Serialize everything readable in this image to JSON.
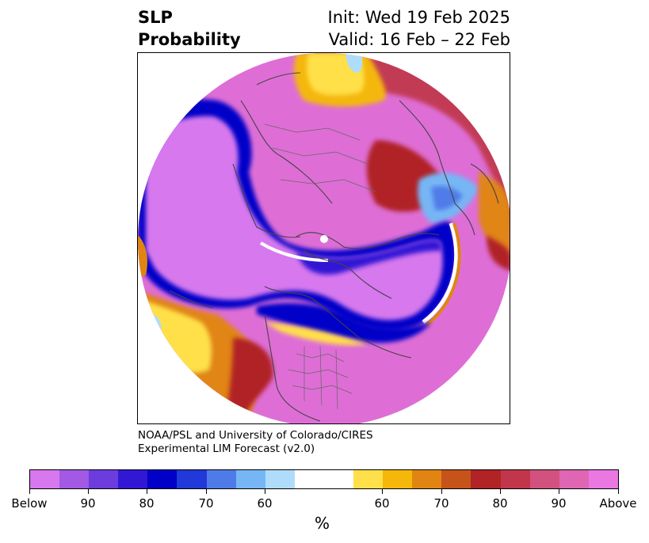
{
  "header": {
    "title_line1": "SLP",
    "title_line2": "Probability",
    "init_text": "Init: Wed 19 Feb 2025",
    "valid_text": "Valid: 16 Feb – 22 Feb"
  },
  "credit": {
    "line1": "NOAA/PSL and University of Colorado/CIRES",
    "line2": "Experimental LIM Forecast (v2.0)"
  },
  "colorbar": {
    "colors": [
      "#d778ee",
      "#a25ae4",
      "#6d3cdc",
      "#3218d5",
      "#0000c8",
      "#2139d8",
      "#4f7be8",
      "#76b6f5",
      "#b0dcfb",
      "#ffffff",
      "#ffffff",
      "#ffe04a",
      "#f4b70a",
      "#e08512",
      "#c6531a",
      "#b12325",
      "#c2364b",
      "#d1527f",
      "#df66b3",
      "#ea77e2"
    ],
    "tick_labels": [
      "Below",
      "90",
      "80",
      "70",
      "60",
      "60",
      "70",
      "80",
      "90",
      "Above"
    ],
    "unit": "%"
  },
  "map": {
    "legend_colors": {
      "below_extreme": "#d778ee",
      "below_strong": "#0000c8",
      "below_weak": "#b0dcfb",
      "neutral": "#ffffff",
      "above_weak": "#ffe04a",
      "above_mid": "#e08512",
      "above_strong": "#b12325",
      "above_extreme": "#ea77e2"
    }
  }
}
